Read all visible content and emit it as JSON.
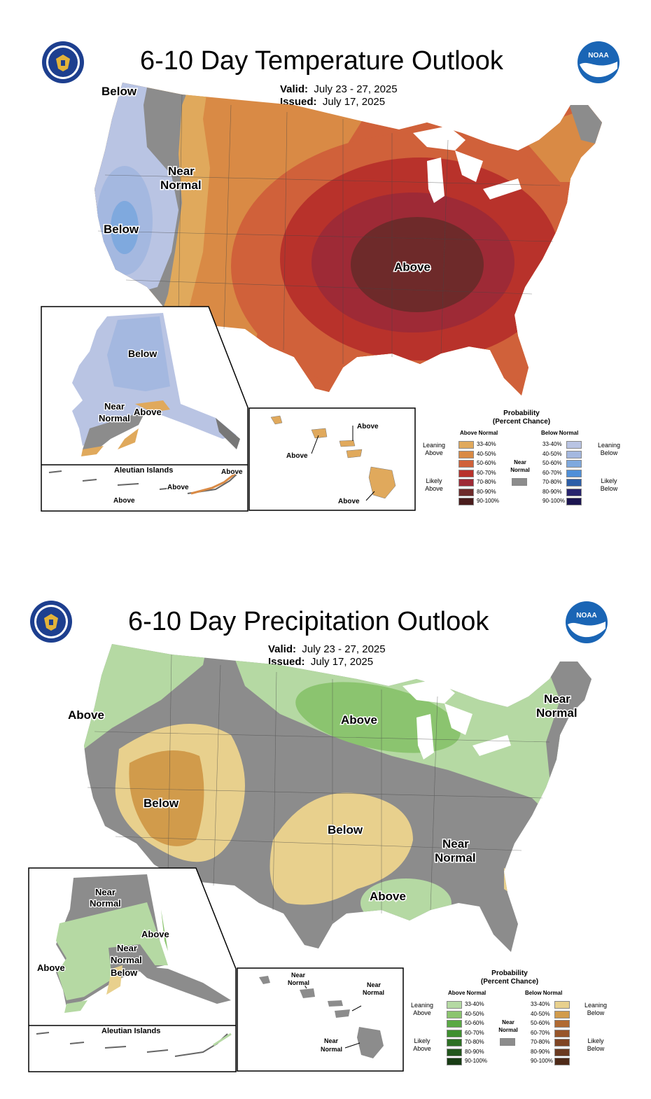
{
  "temperature": {
    "title": "6-10 Day Temperature Outlook",
    "valid_label": "Valid:",
    "valid_value": "July 23 - 27, 2025",
    "issued_label": "Issued:",
    "issued_value": "July 17, 2025",
    "labels": {
      "below_nw": "Below",
      "near_normal_1": "Near",
      "near_normal_2": "Normal",
      "below_ca": "Below",
      "above_center": "Above",
      "ak_below": "Below",
      "ak_near_1": "Near",
      "ak_near_2": "Normal",
      "ak_above": "Above",
      "aleutian_title": "Aleutian Islands",
      "aleut_above_1": "Above",
      "aleut_above_2": "Above",
      "aleut_above_3": "Above",
      "hi_above_1": "Above",
      "hi_above_2": "Above",
      "hi_above_3": "Above"
    },
    "legend": {
      "title_1": "Probability",
      "title_2": "(Percent Chance)",
      "above_header": "Above Normal",
      "below_header": "Below Normal",
      "near_1": "Near",
      "near_2": "Normal",
      "leaning_above_1": "Leaning",
      "leaning_above_2": "Above",
      "likely_above_1": "Likely",
      "likely_above_2": "Above",
      "leaning_below_1": "Leaning",
      "leaning_below_2": "Below",
      "likely_below_1": "Likely",
      "likely_below_2": "Below",
      "ranges": [
        "33-40%",
        "40-50%",
        "50-60%",
        "60-70%",
        "70-80%",
        "80-90%",
        "90-100%"
      ],
      "above_colors": [
        "#e0a95c",
        "#d98a45",
        "#d0613a",
        "#b8322b",
        "#9e2a36",
        "#6e2a2a",
        "#4a1c1c"
      ],
      "below_colors": [
        "#b9c4e3",
        "#a4b8e0",
        "#7fa9de",
        "#4f8fd8",
        "#2c5ea8",
        "#27236e",
        "#1b1450"
      ],
      "near_color": "#8c8c8c"
    }
  },
  "precipitation": {
    "title": "6-10 Day Precipitation Outlook",
    "valid_label": "Valid:",
    "valid_value": "July 23 - 27, 2025",
    "issued_label": "Issued:",
    "issued_value": "July 17, 2025",
    "labels": {
      "above_west": "Above",
      "above_north": "Above",
      "near_ne_1": "Near",
      "near_ne_2": "Normal",
      "below_sw": "Below",
      "below_plains": "Below",
      "near_se_1": "Near",
      "near_se_2": "Normal",
      "above_gulf": "Above",
      "ak_near_a1": "Near",
      "ak_near_a2": "Normal",
      "ak_above_e": "Above",
      "ak_near_b1": "Near",
      "ak_near_b2": "Normal",
      "ak_below": "Below",
      "ak_above_w": "Above",
      "aleutian_title": "Aleutian Islands",
      "hi_near_a1": "Near",
      "hi_near_a2": "Normal",
      "hi_near_b1": "Near",
      "hi_near_b2": "Normal",
      "hi_near_c1": "Near",
      "hi_near_c2": "Normal"
    },
    "legend": {
      "title_1": "Probability",
      "title_2": "(Percent Chance)",
      "above_header": "Above Normal",
      "below_header": "Below Normal",
      "near_1": "Near",
      "near_2": "Normal",
      "leaning_above_1": "Leaning",
      "leaning_above_2": "Above",
      "likely_above_1": "Likely",
      "likely_above_2": "Above",
      "leaning_below_1": "Leaning",
      "leaning_below_2": "Below",
      "likely_below_1": "Likely",
      "likely_below_2": "Below",
      "ranges": [
        "33-40%",
        "40-50%",
        "50-60%",
        "60-70%",
        "70-80%",
        "80-90%",
        "90-100%"
      ],
      "above_colors": [
        "#b5d9a3",
        "#8bc46f",
        "#5aa845",
        "#3f8f2f",
        "#2e7024",
        "#22561c",
        "#183c14"
      ],
      "below_colors": [
        "#e8d08d",
        "#d19b4b",
        "#b06a32",
        "#97552a",
        "#7f4524",
        "#6a3a20",
        "#4e2a18"
      ],
      "near_color": "#8c8c8c"
    }
  }
}
